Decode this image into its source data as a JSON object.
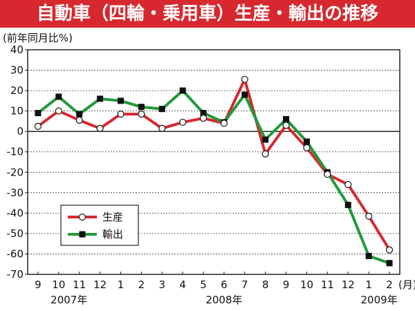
{
  "header": {
    "title": "自動車（四輪・乗用車）生産・輸出の推移"
  },
  "chart_data": {
    "type": "line",
    "title": "自動車（四輪・乗用車）生産・輸出の推移",
    "ylabel": "(前年同月比%)",
    "x_unit": "(月)",
    "ylim": [
      -70,
      40
    ],
    "yticks": [
      40,
      30,
      20,
      10,
      0,
      -10,
      -20,
      -30,
      -40,
      -50,
      -60,
      -70
    ],
    "categories": [
      "9",
      "10",
      "11",
      "12",
      "1",
      "2",
      "3",
      "4",
      "5",
      "6",
      "7",
      "8",
      "9",
      "10",
      "11",
      "12",
      "1",
      "2"
    ],
    "year_labels": [
      {
        "text": "2007年",
        "at": 1.5
      },
      {
        "text": "2008年",
        "at": 9
      },
      {
        "text": "2009年",
        "at": 16.5
      }
    ],
    "grid": true,
    "legend_position": "lower-left",
    "series": [
      {
        "name": "生産",
        "color": "#d7282f",
        "marker": "circle",
        "values": [
          2.5,
          10,
          5.5,
          1.5,
          8.5,
          8.5,
          1.5,
          4.5,
          6.5,
          4,
          25.5,
          -11,
          3,
          -8,
          -21,
          -26,
          -41.5,
          -58
        ]
      },
      {
        "name": "輸出",
        "color": "#1f9a3a",
        "marker": "square",
        "values": [
          9,
          17,
          8.5,
          16,
          15,
          12,
          11,
          20,
          9,
          4.5,
          18,
          -4,
          6,
          -5,
          -20,
          -36,
          -61,
          -64.5
        ]
      }
    ]
  }
}
